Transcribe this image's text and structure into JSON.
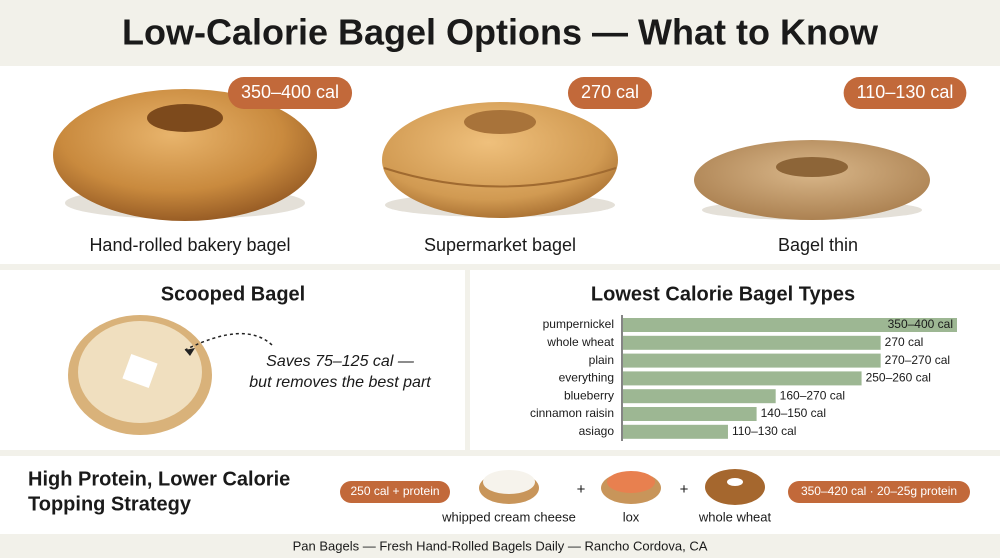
{
  "title": "Low-Calorie Bagel Options — What to Know",
  "bagels": [
    {
      "badge": "350–400 cal",
      "label": "Hand-rolled bakery bagel"
    },
    {
      "badge": "270 cal",
      "label": "Supermarket bagel"
    },
    {
      "badge": "110–130 cal",
      "label": "Bagel thin"
    }
  ],
  "scooped": {
    "title": "Scooped Bagel",
    "note_line1": "Saves 75–125 cal —",
    "note_line2": "but removes the best part"
  },
  "chart_data": {
    "type": "bar",
    "orientation": "horizontal",
    "title": "Lowest Calorie Bagel Types",
    "categories": [
      "pumpernickel",
      "whole wheat",
      "plain",
      "everything",
      "blueberry",
      "cinnamon raisin",
      "asiago"
    ],
    "values": [
      350,
      270,
      270,
      250,
      160,
      140,
      110
    ],
    "value_labels": [
      "350–400 cal",
      "270 cal",
      "270–270 cal",
      "250–260 cal",
      "160–270 cal",
      "140–150 cal",
      "110–130 cal"
    ],
    "color": "#9db793",
    "xlim": [
      0,
      350
    ]
  },
  "topping": {
    "title_line1": "High Protein, Lower Calorie",
    "title_line2": "Topping Strategy",
    "start_badge": "250 cal + protein",
    "items": [
      "whipped cream cheese",
      "lox",
      "whole wheat"
    ],
    "operators": [
      "+",
      "+"
    ],
    "result_badge": "350–420 cal · 20–25g protein"
  },
  "footer": "Pan Bagels — Fresh Hand-Rolled Bagels Daily — Rancho Cordova, CA"
}
